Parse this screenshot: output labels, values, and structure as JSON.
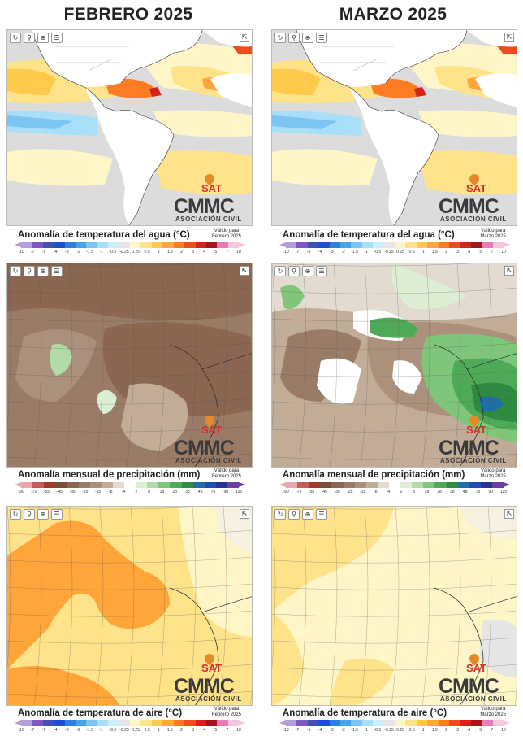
{
  "columns": [
    {
      "title": "FEBRERO 2025",
      "valid": [
        "Válido para",
        "Febrero 2025"
      ]
    },
    {
      "title": "MARZO 2025",
      "valid": [
        "Válido para",
        "Marzo 2025"
      ]
    }
  ],
  "toolbar_icons": [
    "refresh-icon",
    "pin-icon",
    "zoom-icon",
    "layers-icon"
  ],
  "logo": {
    "sat": "SAT",
    "cmmc": "CMMC",
    "ac": "ASOCIACIÓN CIVIL"
  },
  "sst": {
    "title": "Anomalía de temperatura del agua (°C)",
    "ticks": [
      "-10",
      "-7",
      "-5",
      "-4",
      "-3",
      "-2",
      "-1.5",
      "-1",
      "-0.5",
      "-0.25",
      "0.25",
      "0.5",
      "1",
      "1.5",
      "2",
      "3",
      "4",
      "5",
      "7",
      "10"
    ],
    "colors": [
      "#b39ddb",
      "#7e57c2",
      "#3f51b5",
      "#1e4fd3",
      "#2f7fe0",
      "#48a3ea",
      "#7cc5f3",
      "#a8def7",
      "#cdeefa",
      "#e6e6e6",
      "#fff6c8",
      "#ffe38a",
      "#ffc94b",
      "#ffa53a",
      "#ff7b24",
      "#ef4c1d",
      "#d2231d",
      "#a5161c",
      "#e57eb5",
      "#f4c7dd"
    ]
  },
  "precip": {
    "title": "Anomalía mensual de precipitación (mm)",
    "ticks": [
      "-90",
      "-70",
      "-55",
      "-45",
      "-35",
      "-25",
      "-15",
      "-8",
      "-4",
      "2",
      "8",
      "18",
      "28",
      "38",
      "48",
      "70",
      "90",
      "125"
    ],
    "colors": [
      "#e9a8b0",
      "#c75a5a",
      "#9d3a2b",
      "#7a4d34",
      "#8b6651",
      "#9a7b66",
      "#ab907c",
      "#c1ac98",
      "#e3dbd0",
      "#ffffff",
      "#dcefd4",
      "#b1dca5",
      "#7fc57a",
      "#4faa58",
      "#2f8a42",
      "#1f6ea8",
      "#1e4db9",
      "#263593",
      "#6c3fa0"
    ]
  },
  "air": {
    "title": "Anomalía de temperatura de aire (°C)",
    "ticks": [
      "-10",
      "-7",
      "-5",
      "-4",
      "-3",
      "-2",
      "-1.5",
      "-1",
      "-0.5",
      "-0.25",
      "0.25",
      "0.5",
      "1",
      "1.5",
      "2",
      "3",
      "4",
      "5",
      "7",
      "10"
    ],
    "colors": [
      "#b39ddb",
      "#7e57c2",
      "#3f51b5",
      "#1e4fd3",
      "#2f7fe0",
      "#48a3ea",
      "#7cc5f3",
      "#a8def7",
      "#cdeefa",
      "#e6e6e6",
      "#fff6c8",
      "#ffe38a",
      "#ffc94b",
      "#ffa53a",
      "#ff7b24",
      "#ef4c1d",
      "#d2231d",
      "#a5161c",
      "#e57eb5",
      "#f4c7dd"
    ]
  }
}
